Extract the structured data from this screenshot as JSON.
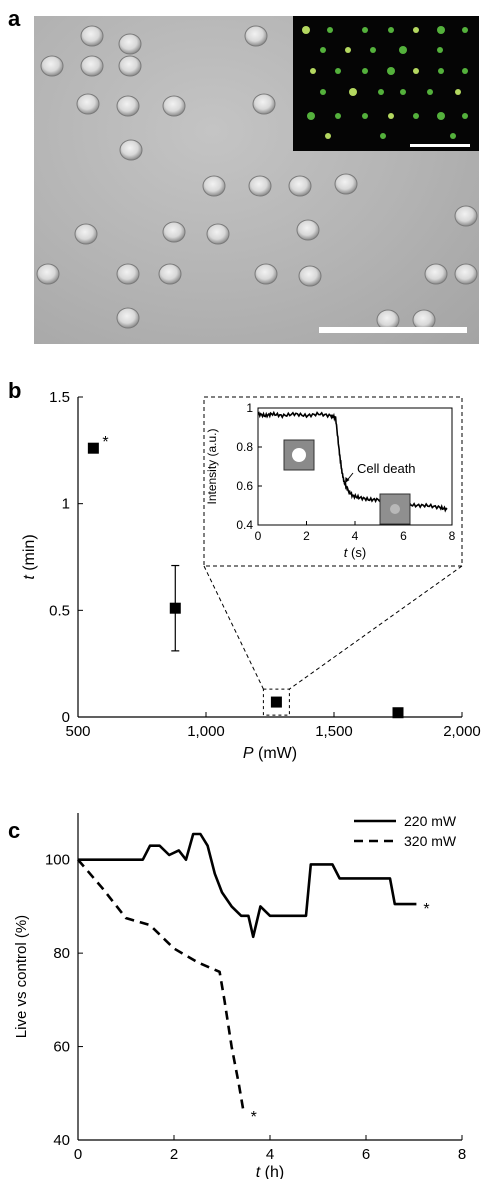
{
  "panels": {
    "a_label": "a",
    "b_label": "b",
    "c_label": "c"
  },
  "chart_data": [
    {
      "type": "scatter",
      "panel": "b",
      "xlabel": "P (mW)",
      "ylabel": "t (min)",
      "xlim": [
        500,
        2000
      ],
      "ylim": [
        0,
        1.5
      ],
      "xticks": [
        500,
        1000,
        1500,
        2000
      ],
      "xtick_labels": [
        "500",
        "1,000",
        "1,500",
        "2,000"
      ],
      "yticks": [
        0,
        0.5,
        1,
        1.5
      ],
      "ytick_labels": [
        "0",
        "0.5",
        "1",
        "1.5"
      ],
      "grid": false,
      "points": [
        {
          "x": 560,
          "y": 1.26,
          "err": null,
          "annotation": "*"
        },
        {
          "x": 880,
          "y": 0.51,
          "err": 0.2,
          "annotation": ""
        },
        {
          "x": 1275,
          "y": 0.07,
          "err": 0.02,
          "annotation": ""
        },
        {
          "x": 1750,
          "y": 0.02,
          "err": null,
          "annotation": ""
        }
      ],
      "inset": {
        "type": "line",
        "xlabel": "t (s)",
        "ylabel": "Intensity (a.u.)",
        "xlim": [
          0,
          8
        ],
        "ylim": [
          0.4,
          1
        ],
        "xticks": [
          0,
          2,
          4,
          6,
          8
        ],
        "yticks": [
          0.4,
          0.6,
          0.8,
          1
        ],
        "ytick_labels": [
          "0.4",
          "0.6",
          "0.8",
          "1"
        ],
        "annotation": "Cell death",
        "x": [
          0,
          0.3,
          0.6,
          1.0,
          1.5,
          2.0,
          2.5,
          3.0,
          3.2,
          3.35,
          3.45,
          3.55,
          3.7,
          3.9,
          4.2,
          4.6,
          5.0,
          5.5,
          6.0,
          6.5,
          7.0,
          7.5,
          7.8
        ],
        "y": [
          0.97,
          0.96,
          0.97,
          0.96,
          0.97,
          0.96,
          0.97,
          0.96,
          0.95,
          0.78,
          0.68,
          0.62,
          0.58,
          0.55,
          0.54,
          0.53,
          0.53,
          0.52,
          0.51,
          0.5,
          0.5,
          0.49,
          0.48
        ]
      }
    },
    {
      "type": "line",
      "panel": "c",
      "xlabel": "t (h)",
      "ylabel": "Live vs control (%)",
      "xlim": [
        0,
        8
      ],
      "ylim": [
        40,
        110
      ],
      "xticks": [
        0,
        2,
        4,
        6,
        8
      ],
      "yticks": [
        40,
        60,
        80,
        100
      ],
      "grid": false,
      "legend": "top-right",
      "series": [
        {
          "name": "220 mW",
          "dash": "solid",
          "x": [
            0,
            0.5,
            1.0,
            1.35,
            1.5,
            1.7,
            1.9,
            2.1,
            2.25,
            2.4,
            2.55,
            2.7,
            2.85,
            3.0,
            3.2,
            3.4,
            3.55,
            3.65,
            3.8,
            4.0,
            4.3,
            4.6,
            4.75,
            4.85,
            5.0,
            5.3,
            5.45,
            6.0,
            6.5,
            6.6,
            6.9,
            7.05
          ],
          "y": [
            100,
            100,
            100,
            100,
            103,
            103,
            101,
            102,
            100,
            105.5,
            105.5,
            103,
            97,
            93,
            90,
            88,
            88,
            83.5,
            90,
            88,
            88,
            88,
            88,
            99,
            99,
            99,
            96,
            96,
            96,
            90.5,
            90.5,
            90.5
          ],
          "end_annotation": "*"
        },
        {
          "name": "320 mW",
          "dash": "dashed",
          "x": [
            0,
            0.5,
            1.0,
            1.5,
            2.0,
            2.5,
            2.95,
            3.05,
            3.2,
            3.35,
            3.45
          ],
          "y": [
            100,
            94,
            87.5,
            86,
            81,
            78,
            76,
            70,
            60,
            52,
            46
          ],
          "end_annotation": "*"
        }
      ]
    }
  ]
}
